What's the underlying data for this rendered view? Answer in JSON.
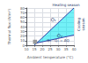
{
  "chart_data": {
    "type": "line",
    "xlabel": "Ambient temperature (°C)",
    "ylabel": "Thermal flux (W/m²)",
    "xlim": [
      10,
      40
    ],
    "ylim": [
      0,
      80
    ],
    "xticks": [
      10,
      15,
      20,
      25,
      30,
      35,
      40
    ],
    "yticks": [
      0,
      10,
      20,
      30,
      40,
      50,
      60,
      70,
      80
    ],
    "grid": true,
    "series": [
      {
        "x": [
          15,
          40
        ],
        "values": [
          0,
          80
        ],
        "color": "#3344aa"
      },
      {
        "x": [
          15,
          40
        ],
        "values": [
          4,
          22
        ],
        "color": "#3344aa"
      }
    ],
    "fill_between": {
      "color": "#00e5f0"
    },
    "rectangles": [
      {
        "x": 14.2,
        "y": 3,
        "width": 2.5,
        "height": 9,
        "color": "#999999"
      }
    ],
    "annotations": [
      {
        "text": "Q₁",
        "x": 27,
        "y": 50,
        "color": "#223366",
        "style": "italic"
      },
      {
        "text": "Q₂",
        "x": 31,
        "y": 17,
        "color": "#223366",
        "style": "italic"
      },
      {
        "text": "Q₂ - Q₁ = ΔQ",
        "x": 30,
        "y": 7,
        "color": "#223366",
        "style": "normal"
      }
    ],
    "top_label": {
      "text": "Heating season",
      "x": 35,
      "y": 82,
      "color": "#223366"
    },
    "side_label": {
      "text": "Cooling\nseason",
      "x": 41.5,
      "y": 45,
      "color": "#223366"
    }
  }
}
